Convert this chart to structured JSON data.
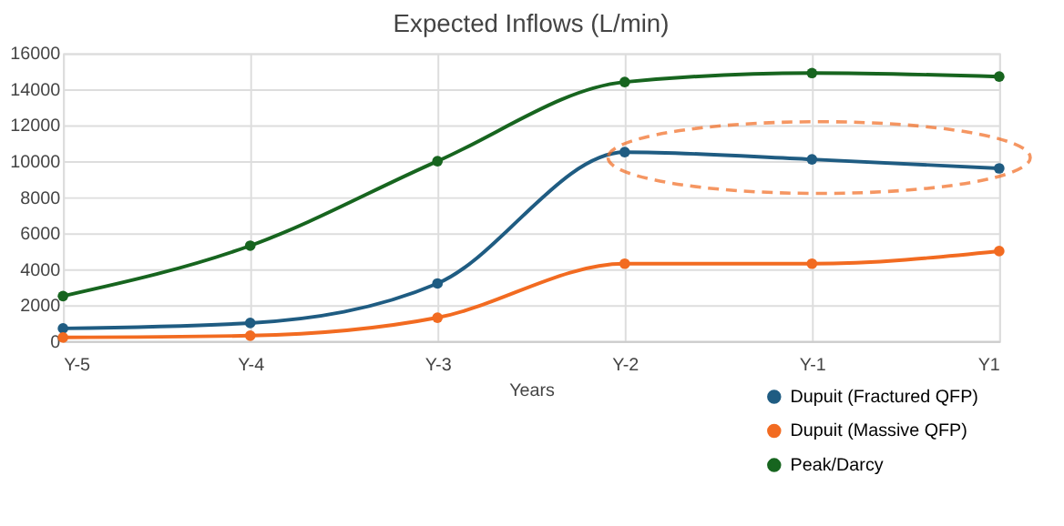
{
  "chart_data": {
    "type": "line",
    "title": "Expected Inflows (L/min)",
    "xlabel": "Years",
    "categories": [
      "Y-5",
      "Y-4",
      "Y-3",
      "Y-2",
      "Y-1",
      "Y1"
    ],
    "series": [
      {
        "name": "Dupuit (Fractured QFP)",
        "color": "#1f5c82",
        "values": [
          700,
          1000,
          3200,
          10500,
          10100,
          9600
        ]
      },
      {
        "name": "Dupuit (Massive QFP)",
        "color": "#f26b21",
        "values": [
          200,
          300,
          1300,
          4300,
          4300,
          5000
        ]
      },
      {
        "name": "Peak/Darcy",
        "color": "#17651f",
        "values": [
          2500,
          5300,
          10000,
          14400,
          14900,
          14700
        ]
      }
    ],
    "ylim": [
      0,
      16000
    ],
    "yticks": [
      0,
      2000,
      4000,
      6000,
      8000,
      10000,
      12000,
      14000,
      16000
    ],
    "grid": true,
    "legend": "bottom right",
    "marker": "circle",
    "line_style": "solid"
  }
}
